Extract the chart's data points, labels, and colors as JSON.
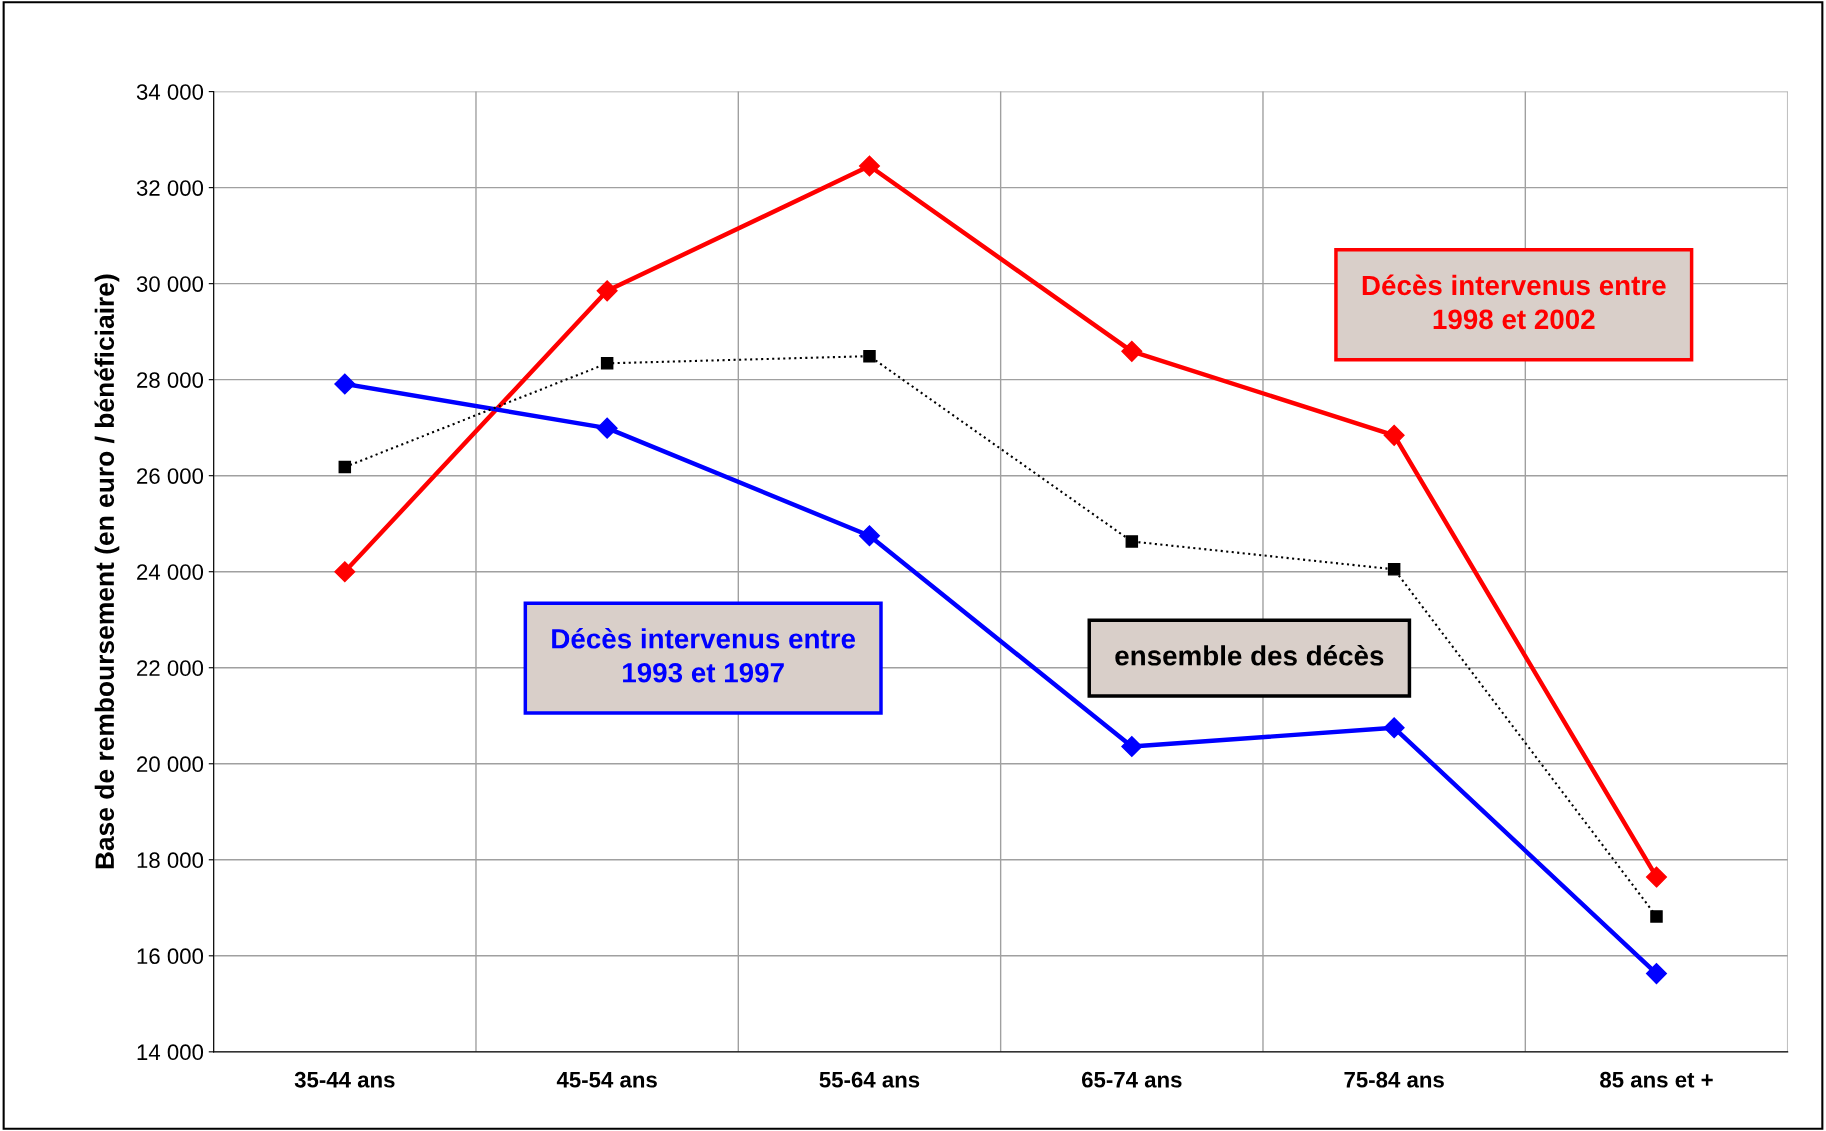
{
  "chart_data": {
    "type": "line",
    "ylabel": "Base de remboursement (en euro / bénéficiaire)",
    "categories": [
      "35-44 ans",
      "45-54 ans",
      "55-64 ans",
      "65-74 ans",
      "75-84 ans",
      "85 ans et +"
    ],
    "series": [
      {
        "name": "Décès intervenus entre\n1998 et 2002",
        "color": "#ff0000",
        "marker": "diamond",
        "line_style": "solid",
        "values": [
          24000,
          29850,
          32450,
          28590,
          26840,
          17640
        ]
      },
      {
        "name": "Décès intervenus entre\n1993 et 1997",
        "color": "#0000ff",
        "marker": "diamond",
        "line_style": "solid",
        "values": [
          27910,
          26990,
          24750,
          20360,
          20750,
          15630
        ]
      },
      {
        "name": "ensemble des décès",
        "color": "#000000",
        "marker": "square",
        "line_style": "dotted",
        "values": [
          26180,
          28340,
          28490,
          24630,
          24050,
          16820
        ]
      }
    ],
    "ylim": [
      14000,
      34000
    ],
    "yticks": [
      {
        "value": 14000,
        "label": "14 000"
      },
      {
        "value": 16000,
        "label": "16 000"
      },
      {
        "value": 18000,
        "label": "18 000"
      },
      {
        "value": 20000,
        "label": "20 000"
      },
      {
        "value": 22000,
        "label": "22 000"
      },
      {
        "value": 24000,
        "label": "24 000"
      },
      {
        "value": 26000,
        "label": "26 000"
      },
      {
        "value": 28000,
        "label": "28 000"
      },
      {
        "value": 30000,
        "label": "30 000"
      },
      {
        "value": 32000,
        "label": "32 000"
      },
      {
        "value": 34000,
        "label": "34 000"
      }
    ],
    "grid": true,
    "legend": false
  }
}
